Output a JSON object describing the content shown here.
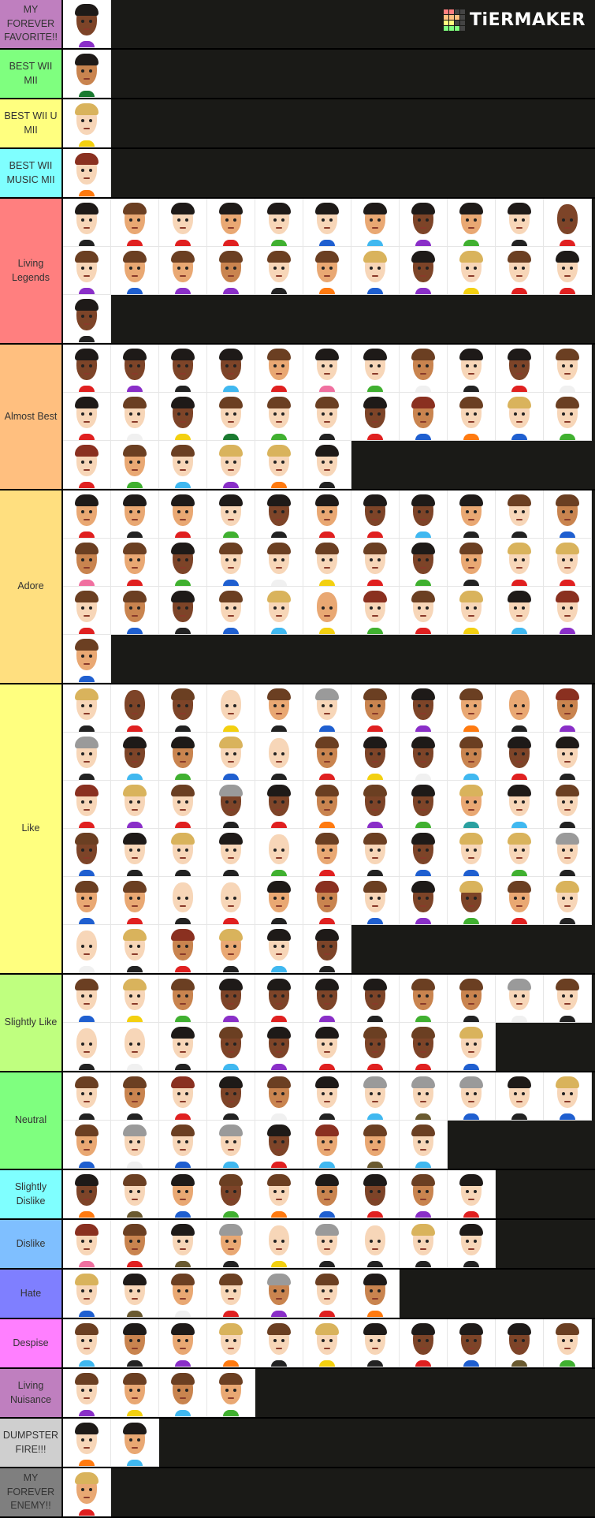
{
  "logo": {
    "text": "TiERMAKER",
    "grid_colors": [
      "#ff7f7f",
      "#ff7f7f",
      "#444444",
      "#444444",
      "#ffbf7f",
      "#ffbf7f",
      "#ffbf7f",
      "#444444",
      "#ffff7f",
      "#ffff7f",
      "#444444",
      "#444444",
      "#7fff7f",
      "#7fff7f",
      "#7fff7f",
      "#444444"
    ]
  },
  "palette": {
    "skin": {
      "l": "#f7d6b8",
      "m": "#e9a873",
      "t": "#c9844f",
      "d": "#7d4428"
    },
    "hair": {
      "k": "#1e1a18",
      "b": "#6b3f22",
      "y": "#d9b35c",
      "g": "#9a9a9a",
      "r": "#8a3020",
      "n": "transparent"
    },
    "shirt": {
      "r": "#e02020",
      "o": "#ff7a10",
      "y": "#f3d010",
      "g": "#40b030",
      "G": "#1a7a30",
      "b": "#1f5fd0",
      "c": "#40b8f0",
      "p": "#8a2fc8",
      "k": "#222222",
      "w": "#f0f0f0",
      "n": "#6a5a30",
      "P": "#f070a0",
      "s": "#2aa0a0"
    }
  },
  "tiers": [
    {
      "label": "MY FOREVER FAVORITE!!",
      "color": "#bf7fbf",
      "items": "dkp"
    },
    {
      "label": "BEST WII MII",
      "color": "#7fff7f",
      "items": "tkG"
    },
    {
      "label": "BEST WII U MII",
      "color": "#ffff7f",
      "items": "lyy"
    },
    {
      "label": "BEST WII MUSIC MII",
      "color": "#7fffff",
      "items": "lro"
    },
    {
      "label": "Living Legends",
      "color": "#ff7f7f",
      "items": "lkk mbr lkr mkr lkg lkb mkc dkp mkg lkk dnr lbp mbb mbp tbp lbk mbo lyb dkp lyy lbr lkr dkk"
    },
    {
      "label": "Almost Best",
      "color": "#ffbf7f",
      "items": "dkr dkp dkk dkc mbr lkP lkg tbw lkk dkr lbw lkr lbw dky lbG lbg lbk dkr trb lbo lyb lbg lrr mbg lbc lyp lyo lkk"
    },
    {
      "label": "Adore",
      "color": "#ffdf7f",
      "items": "mkr mkk mkr lkg dkk mkr dkr dkc mkk lbk tbb tbP mbr dkg lbb lbw lby lbr dkg mbk lyr lyr lbr tbb dkk lbb lyc mny lrg lbr lyy lkc lrp mbb"
    },
    {
      "label": "Like",
      "color": "#ffff7f",
      "items": "lyk dnr dbk lny mbk lgb tbr dkp mbo mnk trp lgk dkc tkg lyb lnk tbr dky dkw tbc dkr lkk lrr lyp lbr dgk dkr tbo dbp dkg mys lkc lbk dbb lkk lyk lkk lng mbr lbk dkb lyb lyg lgk mbb mbr lnk lnr mkk trr lbb dkp dyg mbr lyk lnw lyk trr myk lkc dkk"
    },
    {
      "label": "Slightly Like",
      "color": "#bfff7f",
      "items": "lbb lyy tbg dkp dkr dkp dkk tbg tbk lgw lbk lnk lnw lkk dbc dkp lkr dbr dbr lyb"
    },
    {
      "label": "Neutral",
      "color": "#7fff7f",
      "items": "lbk tbk lrr dkk tbw lkk lgc lgn lgb lkk lyb mbb lgw lbb lgc dkr mrc mbn lbc"
    },
    {
      "label": "Slightly Dislike",
      "color": "#7fffff",
      "items": "dko lbn mkb dbg lbo tkb dkr tbp lkr"
    },
    {
      "label": "Dislike",
      "color": "#7fbfff",
      "items": "lrP tbr lkn mgk lny lgk lnk lyk lkk"
    },
    {
      "label": "Hate",
      "color": "#7f7fff",
      "items": "lyb lkn mbw lbr tgp lbr tko"
    },
    {
      "label": "Despise",
      "color": "#ff7fff",
      "items": "lbc tkk mkp lyo lbk lyy lkk dkr dkb dkn lbg"
    },
    {
      "label": "Living Nuisance",
      "color": "#bf7fbf",
      "items": "lbp mby tbc mbg"
    },
    {
      "label": "DUMPSTER FIRE!!!",
      "color": "#cfcfcf",
      "items": "lko mkc"
    },
    {
      "label": "MY FOREVER ENEMY!!",
      "color": "#7f7f7f",
      "items": "myr"
    }
  ]
}
